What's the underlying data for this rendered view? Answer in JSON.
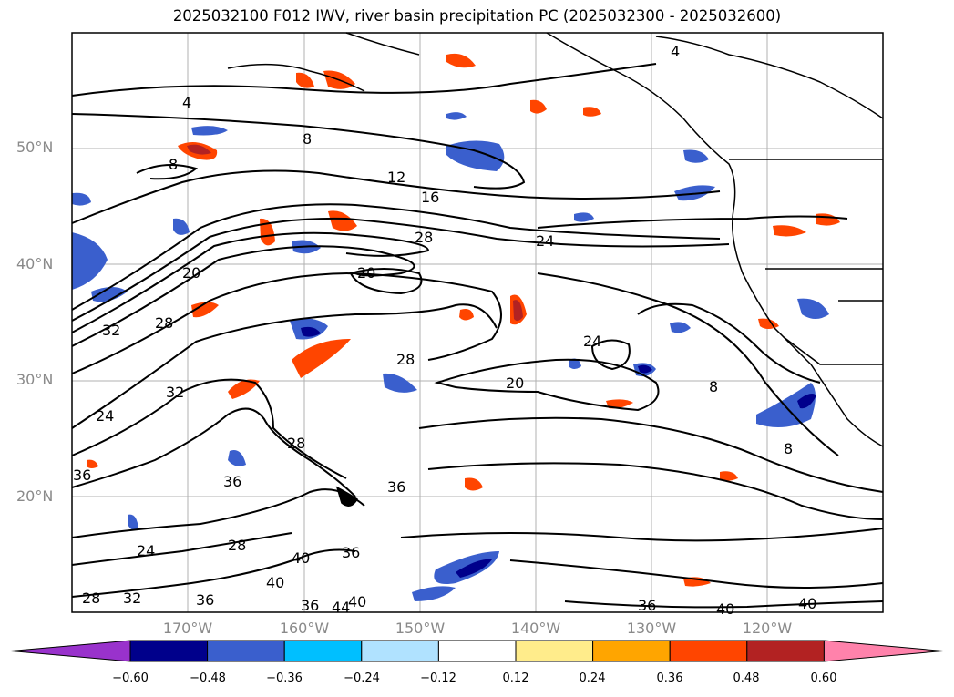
{
  "title": "2025032100 F012 IWV, river basin precipitation PC (2025032300 - 2025032600)",
  "lat_labels": [
    "50°N",
    "40°N",
    "30°N",
    "20°N"
  ],
  "lon_labels": [
    "170°W",
    "160°W",
    "150°W",
    "140°W",
    "130°W",
    "120°W"
  ],
  "colorbar": {
    "ticks": [
      "−0.60",
      "−0.48",
      "−0.36",
      "−0.24",
      "−0.12",
      "0.12",
      "0.24",
      "0.36",
      "0.48",
      "0.60"
    ],
    "colors": [
      "#9932cc",
      "#00008b",
      "#3a5fcd",
      "#00bfff",
      "#b0e2ff",
      "#ffffff",
      "#ffec8b",
      "#ffa500",
      "#ff4500",
      "#b22222",
      "#ff82ab"
    ]
  },
  "contour_labels": [
    "4",
    "8",
    "12",
    "16",
    "20",
    "24",
    "28",
    "32",
    "36",
    "40",
    "44"
  ],
  "chart_data": {
    "type": "map",
    "title": "2025032100 F012 IWV, river basin precipitation PC (2025032300 - 2025032600)",
    "lat_range": [
      10,
      60
    ],
    "lon_range": [
      -180,
      -110
    ],
    "grid": true,
    "contour_field": "IWV",
    "contour_levels": [
      4,
      8,
      12,
      16,
      20,
      24,
      28,
      32,
      36,
      40,
      44
    ],
    "fill_field": "river basin precipitation PC",
    "fill_levels": [
      -0.6,
      -0.48,
      -0.36,
      -0.24,
      -0.12,
      0.12,
      0.24,
      0.36,
      0.48,
      0.6
    ]
  }
}
